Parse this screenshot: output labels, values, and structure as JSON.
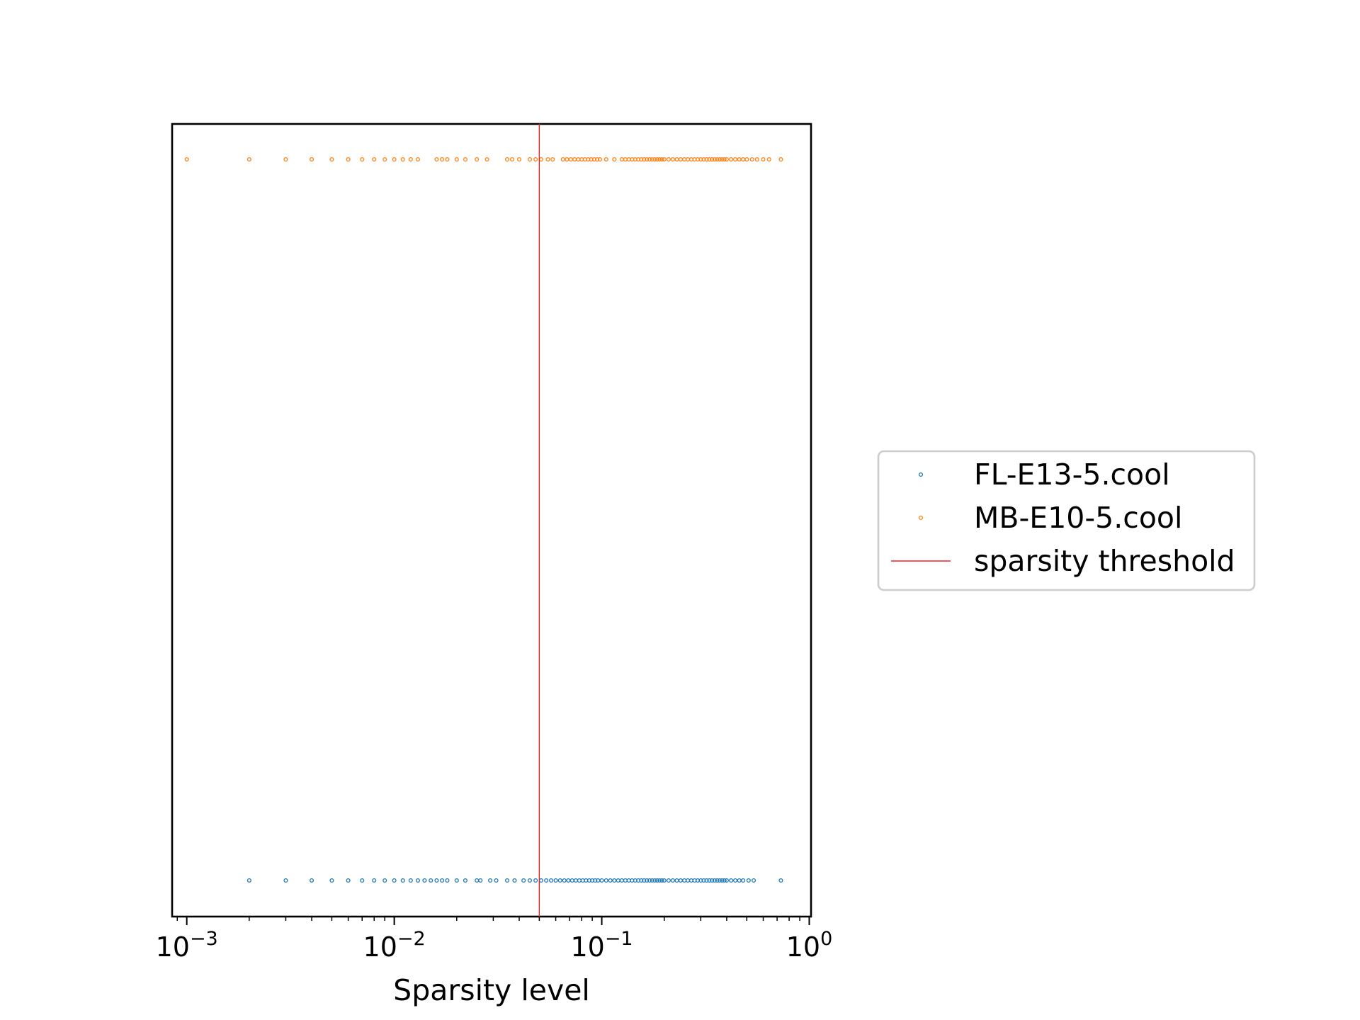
{
  "chart_data": {
    "type": "scatter",
    "title": "",
    "xlabel": "Sparsity level",
    "ylabel": "",
    "xscale": "log",
    "xlim": [
      0.00085,
      1.02
    ],
    "x_ticks": [
      {
        "value": 0.001,
        "base": "10",
        "exp": "−3"
      },
      {
        "value": 0.01,
        "base": "10",
        "exp": "−2"
      },
      {
        "value": 0.1,
        "base": "10",
        "exp": "−1"
      },
      {
        "value": 1,
        "base": "10",
        "exp": "0"
      }
    ],
    "grid": false,
    "legend_position": "outside-right",
    "series": [
      {
        "name": "FL-E13-5.cool",
        "color": "#1f77b4",
        "marker": "circle-open",
        "row": "bottom",
        "x": [
          0.002,
          0.003,
          0.004,
          0.005,
          0.006,
          0.007,
          0.008,
          0.009,
          0.01,
          0.011,
          0.012,
          0.013,
          0.014,
          0.015,
          0.016,
          0.017,
          0.018,
          0.02,
          0.022,
          0.025,
          0.026,
          0.029,
          0.031,
          0.035,
          0.038,
          0.042,
          0.045,
          0.048,
          0.051,
          0.054,
          0.057,
          0.06,
          0.063,
          0.066,
          0.069,
          0.072,
          0.075,
          0.078,
          0.081,
          0.084,
          0.087,
          0.09,
          0.093,
          0.096,
          0.1,
          0.105,
          0.11,
          0.115,
          0.12,
          0.125,
          0.13,
          0.135,
          0.14,
          0.145,
          0.15,
          0.155,
          0.16,
          0.165,
          0.17,
          0.175,
          0.18,
          0.185,
          0.19,
          0.195,
          0.2,
          0.21,
          0.22,
          0.23,
          0.24,
          0.25,
          0.26,
          0.27,
          0.28,
          0.29,
          0.3,
          0.31,
          0.32,
          0.33,
          0.34,
          0.35,
          0.36,
          0.37,
          0.38,
          0.39,
          0.4,
          0.42,
          0.44,
          0.46,
          0.48,
          0.51,
          0.54,
          0.73
        ]
      },
      {
        "name": "MB-E10-5.cool",
        "color": "#ff7f0e",
        "marker": "circle-open",
        "row": "top",
        "x": [
          0.001,
          0.002,
          0.003,
          0.004,
          0.005,
          0.006,
          0.007,
          0.008,
          0.009,
          0.01,
          0.011,
          0.012,
          0.013,
          0.016,
          0.017,
          0.018,
          0.02,
          0.022,
          0.025,
          0.028,
          0.035,
          0.037,
          0.04,
          0.045,
          0.048,
          0.051,
          0.055,
          0.058,
          0.065,
          0.068,
          0.071,
          0.074,
          0.077,
          0.08,
          0.083,
          0.086,
          0.089,
          0.092,
          0.095,
          0.098,
          0.105,
          0.115,
          0.125,
          0.13,
          0.135,
          0.14,
          0.145,
          0.15,
          0.155,
          0.16,
          0.165,
          0.17,
          0.175,
          0.18,
          0.185,
          0.19,
          0.195,
          0.2,
          0.21,
          0.22,
          0.23,
          0.24,
          0.25,
          0.26,
          0.27,
          0.28,
          0.29,
          0.3,
          0.31,
          0.32,
          0.33,
          0.34,
          0.35,
          0.36,
          0.37,
          0.38,
          0.39,
          0.4,
          0.42,
          0.44,
          0.46,
          0.48,
          0.5,
          0.53,
          0.56,
          0.6,
          0.64,
          0.73
        ]
      }
    ],
    "threshold": {
      "name": "sparsity threshold",
      "x": 0.05,
      "color": "#e8252a"
    }
  }
}
